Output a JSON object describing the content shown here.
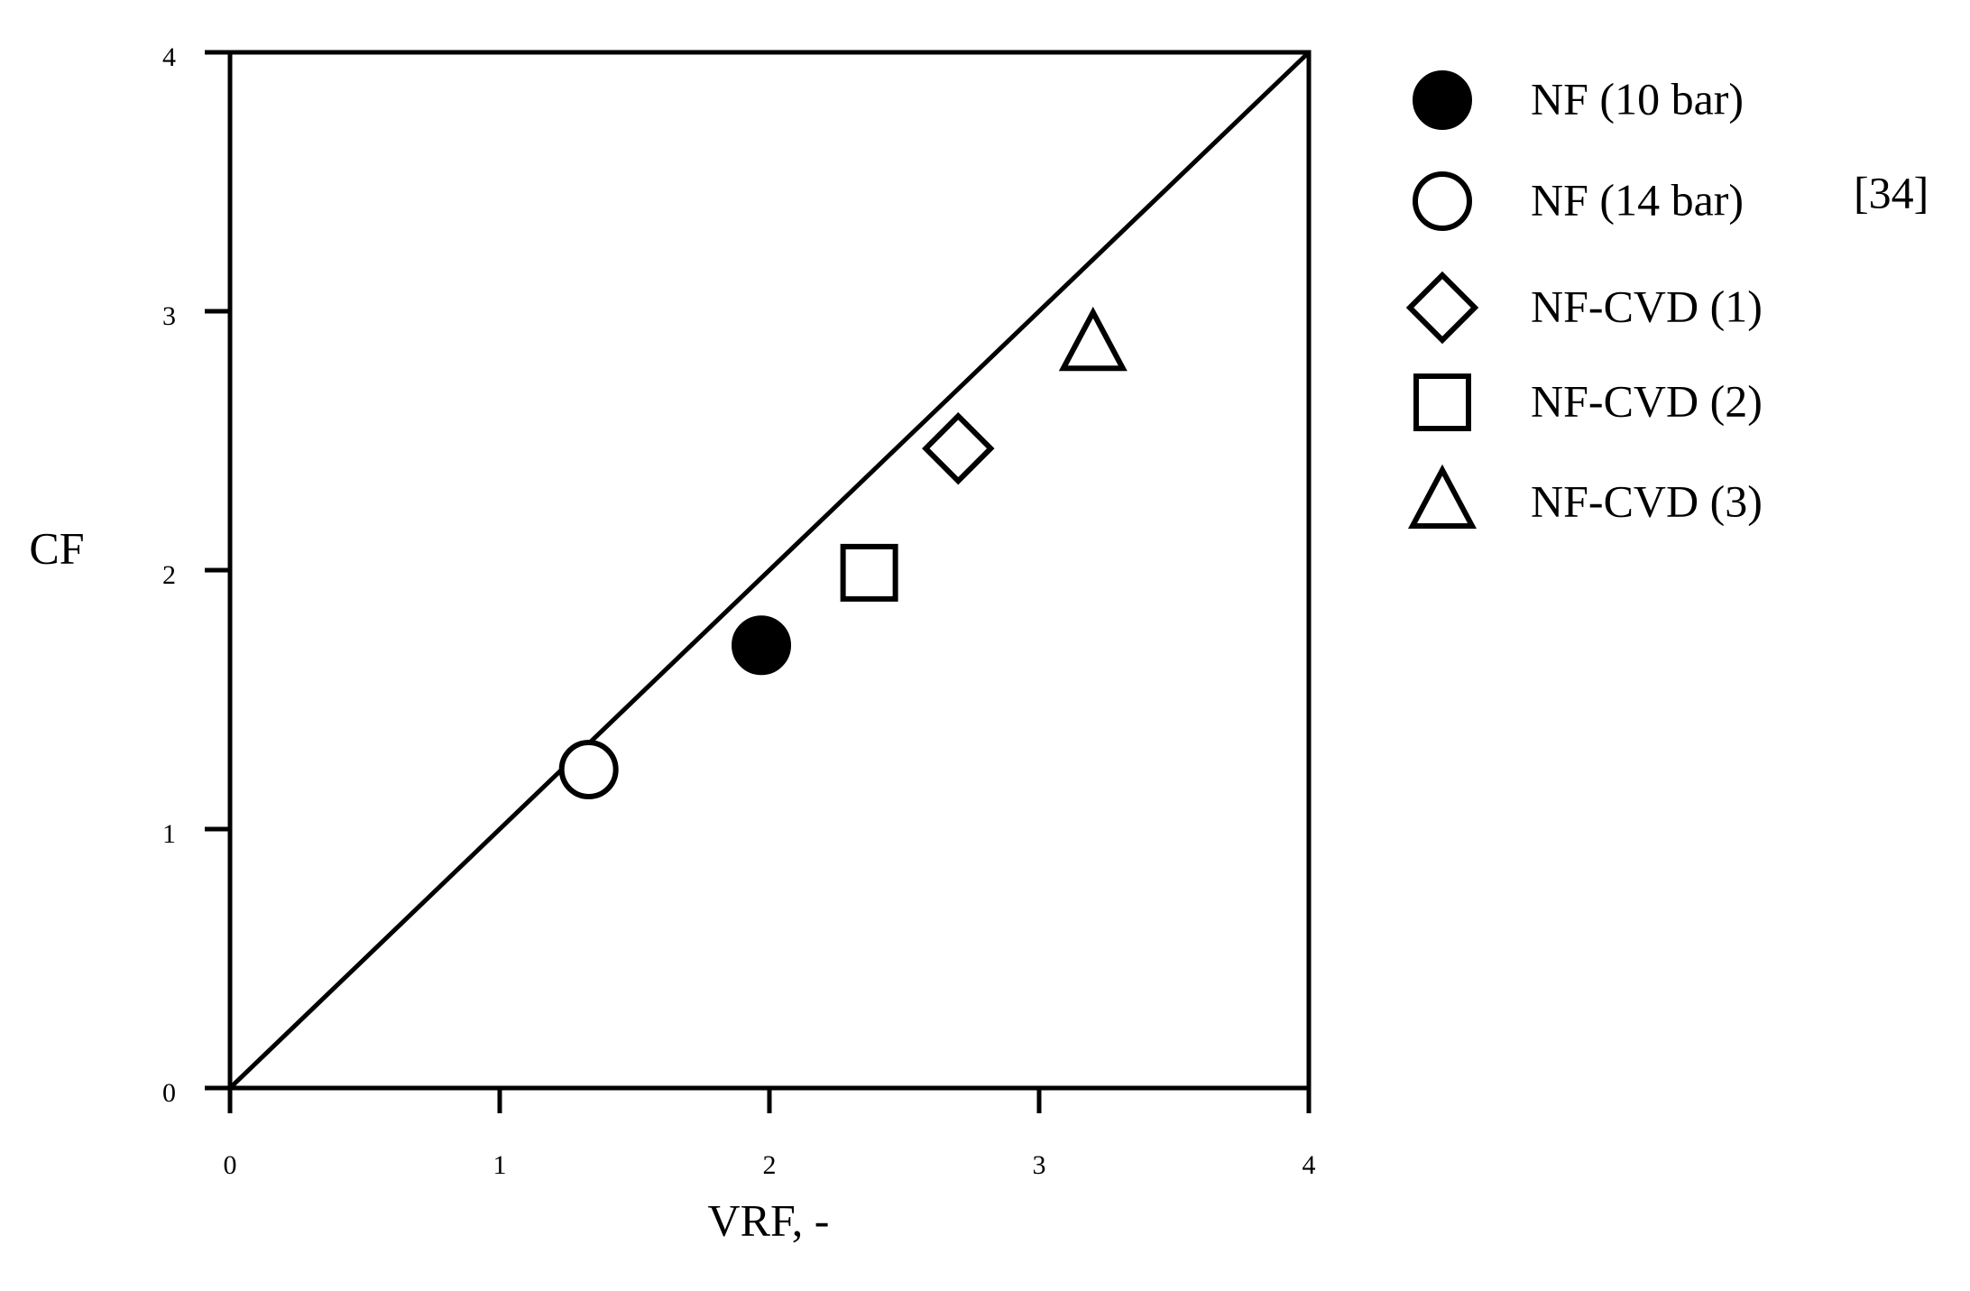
{
  "chart_data": {
    "type": "scatter",
    "xlabel": "VRF, -",
    "ylabel": "CF",
    "xlim": [
      0,
      4
    ],
    "ylim": [
      0,
      4
    ],
    "xticks": [
      0,
      1,
      2,
      3,
      4
    ],
    "yticks": [
      0,
      1,
      2,
      3,
      4
    ],
    "legend_note": "[34]",
    "series": [
      {
        "name": "NF (10 bar)",
        "marker": "circle",
        "filled": true,
        "color": "#000000",
        "x": [
          1.97
        ],
        "values": [
          1.71
        ]
      },
      {
        "name": "NF (14 bar)",
        "marker": "circle",
        "filled": false,
        "color": "#000000",
        "x": [
          1.33
        ],
        "values": [
          1.23
        ]
      },
      {
        "name": "NF-CVD (1)",
        "marker": "diamond",
        "filled": false,
        "color": "#000000",
        "x": [
          2.7
        ],
        "values": [
          2.47
        ]
      },
      {
        "name": "NF-CVD (2)",
        "marker": "square",
        "filled": false,
        "color": "#000000",
        "x": [
          2.37
        ],
        "values": [
          1.99
        ]
      },
      {
        "name": "NF-CVD (3)",
        "marker": "triangle",
        "filled": false,
        "color": "#000000",
        "x": [
          3.2
        ],
        "values": [
          2.87
        ]
      }
    ]
  }
}
